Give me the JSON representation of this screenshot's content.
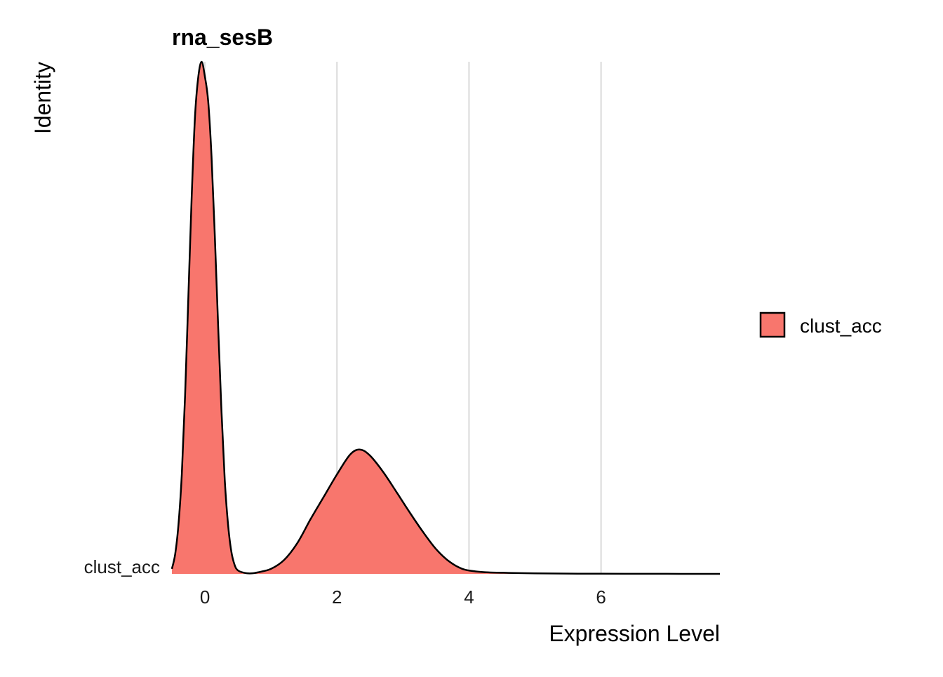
{
  "chart_data": {
    "type": "area",
    "title": "rna_sesB",
    "xlabel": "Expression Level",
    "ylabel": "Identity",
    "xlim": [
      -0.5,
      7.8
    ],
    "x_ticks": [
      0,
      2,
      4,
      6
    ],
    "x_tick_labels": [
      "0",
      "2",
      "4",
      "6"
    ],
    "y_tick_labels": [
      "clust_acc"
    ],
    "grid": "vertical major lines",
    "legend_position": "right",
    "fill_color": "#F8766D",
    "outline_color": "#000000",
    "series": [
      {
        "name": "clust_acc",
        "x": [
          -0.5,
          -0.45,
          -0.4,
          -0.35,
          -0.3,
          -0.25,
          -0.2,
          -0.15,
          -0.1,
          -0.05,
          0,
          0.05,
          0.1,
          0.15,
          0.2,
          0.25,
          0.3,
          0.35,
          0.4,
          0.45,
          0.5,
          0.6,
          0.7,
          0.8,
          1.0,
          1.2,
          1.4,
          1.6,
          1.8,
          2.0,
          2.2,
          2.35,
          2.5,
          2.7,
          2.9,
          3.1,
          3.3,
          3.5,
          3.7,
          3.9,
          4.1,
          4.3,
          4.6,
          5.0,
          5.5,
          6.0,
          7.0,
          7.8
        ],
        "density": [
          0.01,
          0.04,
          0.1,
          0.2,
          0.36,
          0.56,
          0.76,
          0.92,
          1.0,
          1.03,
          1.0,
          0.95,
          0.84,
          0.68,
          0.5,
          0.33,
          0.19,
          0.1,
          0.045,
          0.018,
          0.007,
          0.002,
          0.001,
          0.003,
          0.01,
          0.028,
          0.062,
          0.11,
          0.155,
          0.2,
          0.24,
          0.25,
          0.238,
          0.205,
          0.165,
          0.124,
          0.085,
          0.05,
          0.025,
          0.01,
          0.005,
          0.003,
          0.002,
          0.001,
          0.0005,
          0.0003,
          0.0001,
          0.0
        ]
      }
    ]
  }
}
